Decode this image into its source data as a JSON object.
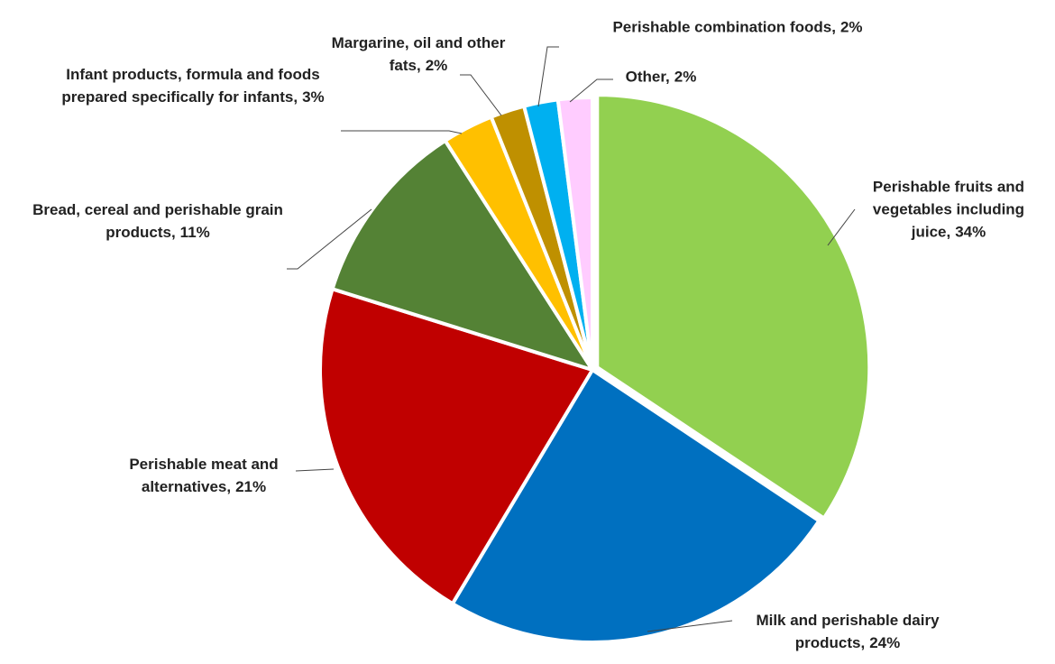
{
  "chart_data": {
    "type": "pie",
    "categories": [
      "Perishable fruits and vegetables including juice,",
      "Milk and perishable dairy products,",
      "Perishable meat and alternatives,",
      "Bread, cereal and perishable grain products,",
      "Infant products, formula and foods prepared specifically for infants,",
      "Margarine, oil and other fats,",
      "Perishable combination foods,",
      "Other,"
    ],
    "values": [
      34,
      24,
      21,
      11,
      3,
      2,
      2,
      2
    ],
    "value_labels": [
      "34%",
      "24%",
      "21%",
      "11%",
      "3%",
      "2%",
      "2%",
      "2%"
    ],
    "colors": [
      "#92d050",
      "#0070c0",
      "#c00000",
      "#548235",
      "#ffc000",
      "#bf9000",
      "#00b0f0",
      "#ffccff"
    ]
  }
}
